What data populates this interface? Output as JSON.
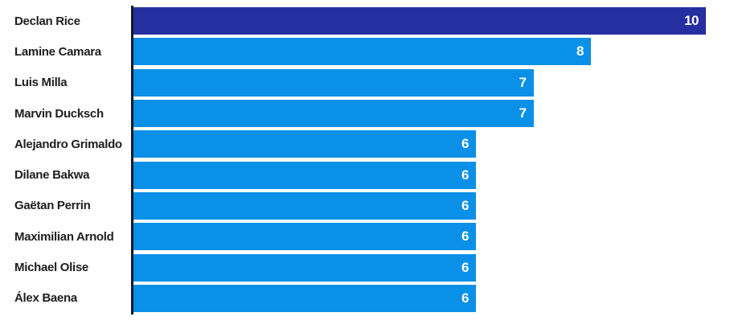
{
  "chart_data": {
    "type": "bar",
    "orientation": "horizontal",
    "title": "",
    "xlabel": "",
    "ylabel": "",
    "xlim": [
      0,
      10
    ],
    "grid": false,
    "legend": "none",
    "value_labels_position": "inside-end",
    "categories": [
      "Declan Rice",
      "Lamine Camara",
      "Luis Milla",
      "Marvin Ducksch",
      "Alejandro Grimaldo",
      "Dilane Bakwa",
      "Gaëtan Perrin",
      "Maximilian Arnold",
      "Michael Olise",
      "Álex Baena"
    ],
    "values": [
      10,
      8,
      7,
      7,
      6,
      6,
      6,
      6,
      6,
      6
    ],
    "highlight_index": 0,
    "colors": {
      "highlight_bar": "#262f9f",
      "bar": "#0b90e8",
      "value_text": "#ffffff",
      "label_text": "#1e1e1e",
      "axis_line": "#10182b",
      "background": "#ffffff"
    }
  }
}
